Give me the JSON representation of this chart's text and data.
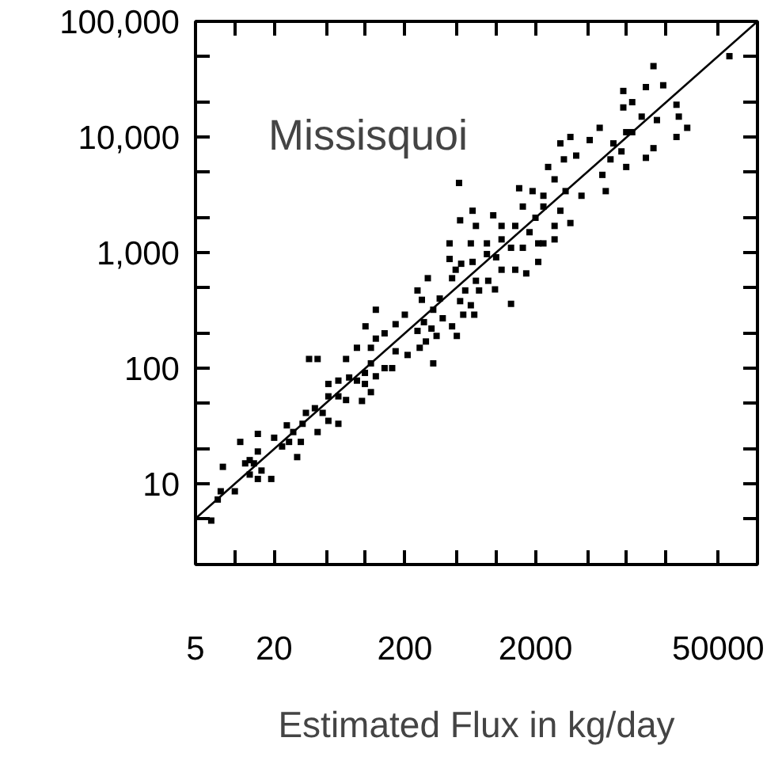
{
  "chart_data": {
    "type": "scatter",
    "xlabel": "Estimated Flux in kg/day",
    "annotations": [
      "Missisquoi"
    ],
    "log": "xy",
    "grid": false,
    "xlim": [
      5,
      100000
    ],
    "ylim": [
      2,
      100000
    ],
    "xticks": [
      5,
      {
        "value": 10,
        "label": null
      },
      20,
      {
        "value": 50,
        "label": null
      },
      {
        "value": 100,
        "label": null
      },
      200,
      {
        "value": 500,
        "label": null
      },
      {
        "value": 1000,
        "label": null
      },
      2000,
      {
        "value": 5000,
        "label": null
      },
      {
        "value": 10000,
        "label": null
      },
      {
        "value": 20000,
        "label": null
      },
      50000
    ],
    "yticks": [
      {
        "value": 5,
        "label": null
      },
      10,
      {
        "value": 20,
        "label": null
      },
      {
        "value": 50,
        "label": null
      },
      100,
      {
        "value": 200,
        "label": null
      },
      {
        "value": 500,
        "label": null
      },
      {
        "value": 1000,
        "label": "1,000"
      },
      {
        "value": 2000,
        "label": null
      },
      {
        "value": 5000,
        "label": null
      },
      {
        "value": 10000,
        "label": "10,000"
      },
      {
        "value": 20000,
        "label": null
      },
      {
        "value": 50000,
        "label": null
      },
      {
        "value": 100000,
        "label": "100,000"
      }
    ],
    "series": [
      {
        "marker": "square",
        "color": "#000000",
        "x": [
          61000,
          16000,
          19000,
          14000,
          9400,
          11000,
          9400,
          13000,
          24000,
          25000,
          29000,
          24000,
          17000,
          9900,
          11000,
          7900,
          9100,
          16000,
          14000,
          9900,
          7500,
          6200,
          5200,
          6500,
          6900,
          4100,
          3700,
          3100,
          3300,
          2500,
          2800,
          3400,
          4500,
          520,
          1500,
          1900,
          2300,
          2300,
          1600,
          2000,
          3100,
          2800,
          3700,
          660,
          950,
          530,
          700,
          1400,
          1100,
          1800,
          440,
          640,
          850,
          1100,
          2300,
          440,
          490,
          460,
          540,
          660,
          850,
          1000,
          1300,
          1600,
          2100,
          2800,
          1100,
          1400,
          1700,
          2100,
          700,
          870,
          740,
          980,
          1300,
          580,
          530,
          640,
          560,
          680,
          460,
          500,
          300,
          250,
          270,
          370,
          330,
          390,
          280,
          250,
          320,
          350,
          290,
          260,
          330,
          200,
          170,
          120,
          100,
          140,
          120,
          110,
          170,
          210,
          160,
          140,
          110,
          99,
          120,
          99,
          110,
          94,
          86,
          75,
          86,
          71,
          62,
          52,
          52,
          62,
          71,
          37,
          43,
          41,
          47,
          52,
          62,
          43,
          35,
          33,
          28,
          25,
          26,
          23,
          20,
          32,
          30,
          15,
          11,
          15,
          13,
          14,
          16,
          15,
          13,
          19,
          12,
          10,
          8.1,
          7.8,
          7.4,
          6.6
        ],
        "values": [
          50000,
          41000,
          28000,
          27000,
          25000,
          20000,
          18000,
          15000,
          19000,
          15000,
          12000,
          10000,
          14000,
          11000,
          11000,
          8800,
          7500,
          8000,
          6600,
          5500,
          6400,
          12000,
          9400,
          4700,
          3400,
          6900,
          10000,
          8800,
          6400,
          5500,
          4300,
          3400,
          3100,
          4000,
          3600,
          3400,
          3100,
          2500,
          2500,
          2000,
          2300,
          1700,
          1800,
          2300,
          2100,
          1900,
          1700,
          1700,
          1700,
          1500,
          1200,
          1200,
          1200,
          1300,
          1200,
          880,
          710,
          600,
          800,
          830,
          970,
          910,
          1100,
          1100,
          1200,
          1300,
          710,
          710,
          660,
          830,
          570,
          570,
          470,
          480,
          360,
          470,
          380,
          350,
          290,
          290,
          230,
          190,
          600,
          470,
          390,
          400,
          320,
          270,
          250,
          210,
          220,
          190,
          170,
          150,
          110,
          290,
          240,
          320,
          230,
          200,
          180,
          150,
          140,
          130,
          100,
          100,
          110,
          91,
          85,
          73,
          62,
          52,
          78,
          83,
          150,
          120,
          78,
          73,
          57,
          57,
          53,
          120,
          120,
          45,
          41,
          35,
          33,
          28,
          41,
          33,
          28,
          32,
          23,
          21,
          25,
          23,
          17,
          27,
          23,
          19,
          16,
          15,
          13,
          11,
          12,
          11,
          15,
          8.6,
          14,
          8.6,
          7.3,
          4.8
        ]
      },
      {
        "type": "line",
        "color": "#000000",
        "line_style": "solid",
        "x": [
          5,
          100000
        ],
        "values": [
          5,
          100000
        ]
      }
    ]
  }
}
